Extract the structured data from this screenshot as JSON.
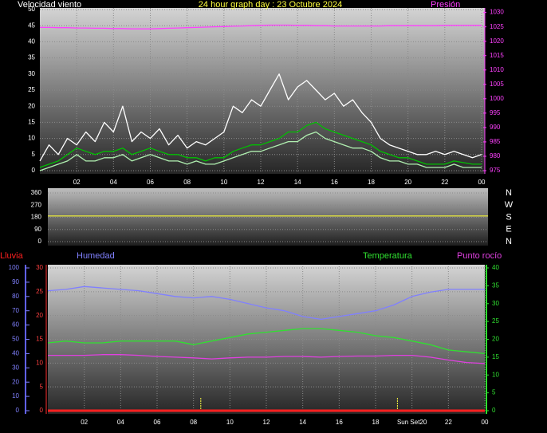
{
  "chart_data": [
    {
      "type": "line",
      "title": "24 hour graph day : 23 Octubre 2024",
      "y_label": "Velocidad viento",
      "y2_label": "Presión",
      "x": [
        0,
        0.5,
        1,
        1.5,
        2,
        2.5,
        3,
        3.5,
        4,
        4.5,
        5,
        5.5,
        6,
        6.5,
        7,
        7.5,
        8,
        8.5,
        9,
        9.5,
        10,
        10.5,
        11,
        11.5,
        12,
        12.5,
        13,
        13.5,
        14,
        14.5,
        15,
        15.5,
        16,
        16.5,
        17,
        17.5,
        18,
        18.5,
        19,
        19.5,
        20,
        20.5,
        21,
        21.5,
        22,
        22.5,
        23,
        23.5,
        24
      ],
      "xlim": [
        0,
        24
      ],
      "xticks": [
        {
          "value": 2,
          "label": "02"
        },
        {
          "value": 4,
          "label": "04"
        },
        {
          "value": 6,
          "label": "06"
        },
        {
          "value": 8,
          "label": "08"
        },
        10,
        12,
        14,
        16,
        18,
        20,
        22,
        {
          "value": 24,
          "label": "00"
        }
      ],
      "ylim": [
        0,
        50
      ],
      "yticks": [
        0,
        5,
        10,
        15,
        20,
        25,
        30,
        35,
        40,
        45,
        50
      ],
      "y2lim": [
        975,
        1031
      ],
      "y2ticks": [
        975,
        980,
        985,
        990,
        995,
        1000,
        1005,
        1010,
        1015,
        1020,
        1025,
        1030
      ],
      "grid": true,
      "series": [
        {
          "color": "#ffffff",
          "values": [
            3,
            8,
            5,
            10,
            8,
            12,
            9,
            15,
            12,
            20,
            9,
            12,
            10,
            13,
            8,
            11,
            7,
            9,
            8,
            10,
            12,
            20,
            18,
            22,
            20,
            25,
            30,
            22,
            26,
            28,
            25,
            22,
            24,
            20,
            22,
            18,
            15,
            10,
            8,
            7,
            6,
            5,
            5,
            6,
            5,
            6,
            5,
            4,
            5
          ]
        },
        {
          "color": "#b0f0b0",
          "values": [
            0,
            1,
            2,
            3,
            5,
            3,
            3,
            4,
            4,
            5,
            3,
            4,
            5,
            4,
            3,
            3,
            2,
            3,
            2,
            2,
            3,
            4,
            5,
            6,
            6,
            7,
            8,
            9,
            9,
            11,
            12,
            10,
            9,
            8,
            7,
            7,
            6,
            4,
            3,
            3,
            2,
            2,
            1,
            1,
            1,
            2,
            1,
            1,
            1
          ]
        },
        {
          "color": "#00c000",
          "values": [
            1,
            2,
            3,
            5,
            7,
            6,
            5,
            6,
            6,
            7,
            5,
            6,
            7,
            6,
            5,
            5,
            4,
            4,
            3,
            4,
            4,
            6,
            7,
            8,
            8,
            9,
            10,
            12,
            12,
            14,
            15,
            13,
            12,
            11,
            10,
            9,
            8,
            6,
            5,
            4,
            4,
            3,
            2,
            2,
            2,
            3,
            2.5,
            2,
            2
          ]
        },
        {
          "color": "#ff40ff",
          "axis": "y2",
          "values": [
            1024.8,
            1024.8,
            1024.7,
            1024.7,
            1024.6,
            1024.6,
            1024.5,
            1024.5,
            1024.4,
            1024.4,
            1024.3,
            1024.3,
            1024.3,
            1024.4,
            1024.5,
            1024.6,
            1024.7,
            1024.8,
            1024.9,
            1025.0,
            1025.1,
            1025.2,
            1025.3,
            1025.4,
            1025.5,
            1025.6,
            1025.6,
            1025.6,
            1025.5,
            1025.5,
            1025.4,
            1025.4,
            1025.3,
            1025.3,
            1025.3,
            1025.3,
            1025.3,
            1025.3,
            1025.4,
            1025.4,
            1025.4,
            1025.4,
            1025.4,
            1025.4,
            1025.5,
            1025.5,
            1025.5,
            1025.5,
            1025.5
          ]
        }
      ]
    },
    {
      "type": "line",
      "x": [
        0,
        1,
        2,
        3,
        4,
        5,
        6,
        7,
        8,
        9,
        10,
        11,
        12,
        13,
        14,
        15,
        16,
        17,
        18,
        19,
        20,
        21,
        22,
        23,
        24
      ],
      "xlim": [
        0,
        24
      ],
      "ylim": [
        0,
        360
      ],
      "yticks": [
        0,
        90,
        180,
        270,
        360
      ],
      "direction_labels": [
        "N",
        "E",
        "S",
        "W",
        "N"
      ],
      "grid": true,
      "series": [
        {
          "color": "#e0e040",
          "values": [
            190,
            190,
            190,
            190,
            190,
            190,
            190,
            190,
            190,
            190,
            190,
            190,
            190,
            190,
            190,
            190,
            190,
            190,
            190,
            190,
            190,
            190,
            190,
            190,
            190
          ]
        }
      ]
    },
    {
      "type": "line",
      "x": [
        0,
        1,
        2,
        3,
        4,
        5,
        6,
        7,
        8,
        9,
        10,
        11,
        12,
        13,
        14,
        15,
        16,
        17,
        18,
        19,
        20,
        21,
        22,
        23,
        24
      ],
      "xlim": [
        0,
        24
      ],
      "xticks": [
        {
          "value": 2,
          "label": "02"
        },
        {
          "value": 4,
          "label": "04"
        },
        {
          "value": 6,
          "label": "06"
        },
        {
          "value": 8,
          "label": "08"
        },
        10,
        12,
        14,
        16,
        18,
        {
          "value": 20,
          "label": "Sun Set20"
        },
        22,
        {
          "value": 24,
          "label": "00"
        }
      ],
      "ylim": [
        0,
        30
      ],
      "yticks": [
        0,
        5,
        10,
        15,
        20,
        25,
        30
      ],
      "y2lim": [
        0,
        40
      ],
      "y2ticks": [
        0,
        5,
        10,
        15,
        20,
        25,
        30,
        35,
        40
      ],
      "y3lim": [
        0,
        100
      ],
      "y3ticks": [
        0,
        10,
        20,
        30,
        40,
        50,
        60,
        70,
        80,
        90,
        100
      ],
      "grid": true,
      "markers": [
        8.4,
        19.2
      ],
      "series": [
        {
          "name": "Lluvia",
          "color": "#ff2020",
          "values": [
            0,
            0,
            0,
            0,
            0,
            0,
            0,
            0,
            0,
            0,
            0,
            0,
            0,
            0,
            0,
            0,
            0,
            0,
            0,
            0,
            0,
            0,
            0,
            0,
            0
          ]
        },
        {
          "name": "Humedad",
          "color": "#8080ff",
          "axis": "y3",
          "values": [
            84,
            85,
            87,
            86,
            85,
            84,
            82,
            80,
            79,
            80,
            78,
            75,
            72,
            70,
            66,
            64,
            66,
            68,
            70,
            74,
            80,
            83,
            85,
            85,
            85
          ]
        },
        {
          "name": "Temperatura",
          "color": "#30e030",
          "axis": "y2",
          "values": [
            19,
            19.5,
            19,
            19,
            19.5,
            19.5,
            19.5,
            19.5,
            18.5,
            19.5,
            20.5,
            21.5,
            22,
            22.5,
            23,
            23,
            22.5,
            22,
            21,
            20.5,
            19.5,
            18.5,
            17,
            16.5,
            16
          ]
        },
        {
          "name": "Punto rocío",
          "color": "#e040e0",
          "axis": "y2",
          "values": [
            15.5,
            15.5,
            15.5,
            15.7,
            15.7,
            15.5,
            15.2,
            15,
            14.8,
            14.5,
            14.8,
            15,
            15,
            15.2,
            15.2,
            15,
            15.2,
            15.3,
            15.3,
            15.5,
            15.5,
            15,
            14.2,
            13.5,
            13.2
          ]
        }
      ]
    }
  ]
}
